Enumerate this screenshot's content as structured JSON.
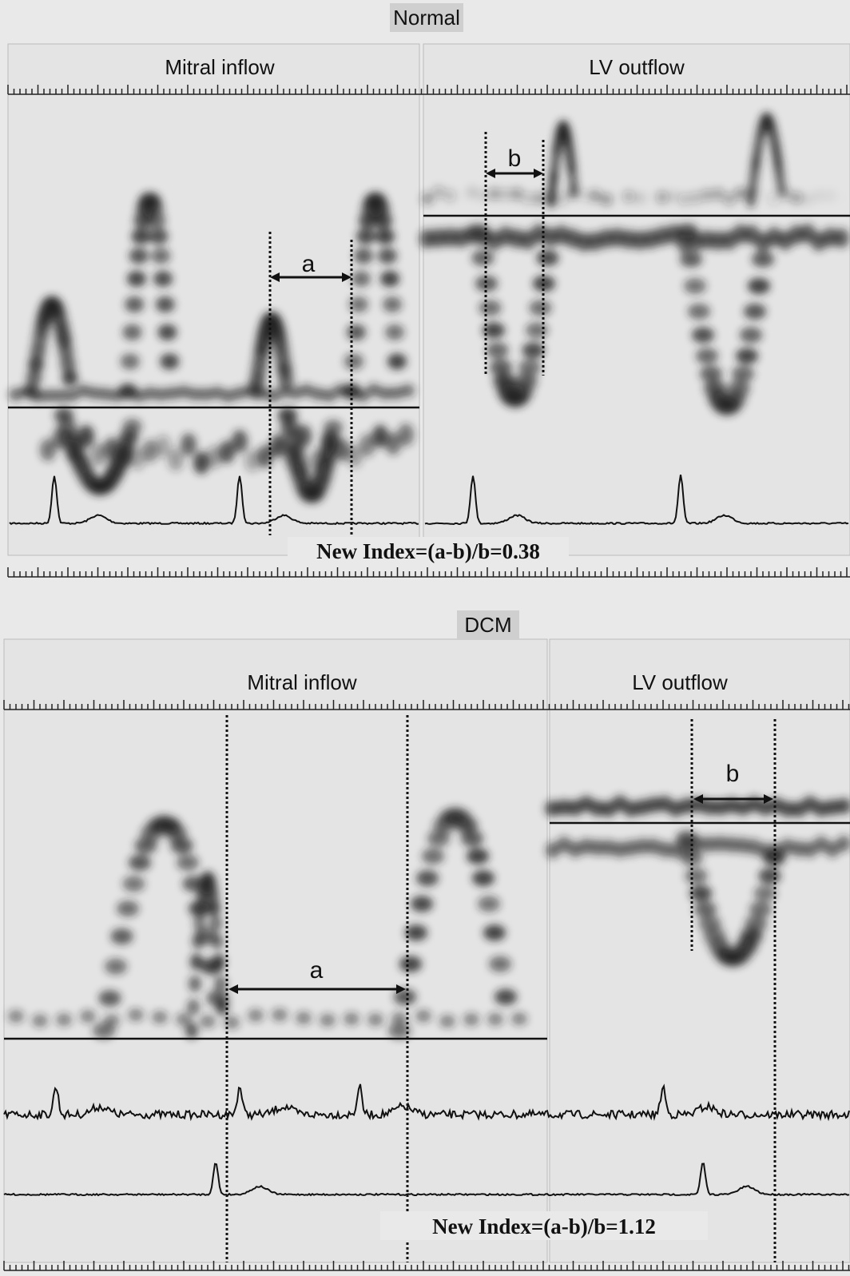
{
  "panels": [
    {
      "title": "Normal",
      "left_label": "Mitral inflow",
      "right_label": "LV outflow",
      "interval_a": "a",
      "interval_b": "b",
      "index_text": "New Index=(a-b)/b=0.38"
    },
    {
      "title": "DCM",
      "left_label": "Mitral inflow",
      "right_label": "LV outflow",
      "interval_a": "a",
      "interval_b": "b",
      "index_text": "New Index=(a-b)/b=1.12"
    }
  ]
}
